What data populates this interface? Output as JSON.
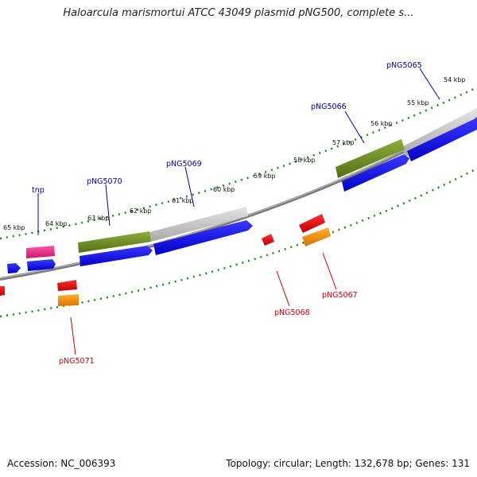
{
  "title": "Haloarcula marismortui ATCC 43049 plasmid pNG500, complete s...",
  "footer": {
    "accession": "Accession: NC_006393",
    "summary": "Topology: circular; Length: 132,678 bp; Genes: 131"
  },
  "colors": {
    "forward_gene": "#0000ee",
    "reverse_gene": "#ee0000",
    "feature_green": "#6b8e23",
    "feature_gray": "#c0c0c0",
    "feature_pink": "#ee1493",
    "feature_orange": "#ff8c00",
    "tick": "#1a8a1a",
    "forward_label": "#000099",
    "reverse_label": "#cc0000"
  },
  "ticks": [
    {
      "label": "54 kbp",
      "kbp": 54
    },
    {
      "label": "55 kbp",
      "kbp": 55
    },
    {
      "label": "56 kbp",
      "kbp": 56
    },
    {
      "label": "57 kbp",
      "kbp": 57
    },
    {
      "label": "58 kbp",
      "kbp": 58
    },
    {
      "label": "59 kbp",
      "kbp": 59
    },
    {
      "label": "60 kbp",
      "kbp": 60
    },
    {
      "label": "61 kbp",
      "kbp": 61
    },
    {
      "label": "62 kbp",
      "kbp": 62
    },
    {
      "label": "63 kbp",
      "kbp": 63
    },
    {
      "label": "64 kbp",
      "kbp": 64
    },
    {
      "label": "65 kbp",
      "kbp": 65
    }
  ],
  "gene_labels": {
    "forward": [
      "pNG5065",
      "pNG5066",
      "pNG5069",
      "pNG5070",
      "tnp"
    ],
    "reverse": [
      "pNG5067",
      "pNG5068",
      "pNG5071"
    ]
  }
}
